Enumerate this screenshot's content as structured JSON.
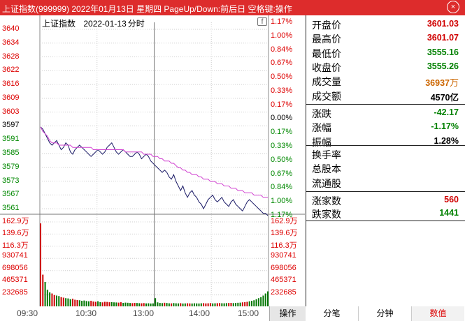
{
  "window": {
    "title": "上证指数(999999) 2022年01月13日 星期四 PageUp/Down:前后日 空格键:操作",
    "close_label": "×"
  },
  "chart": {
    "caption_name": "上证指数",
    "caption_date": "2022-01-13",
    "caption_suffix": "分时",
    "mini_icon": "f",
    "price_ticks_left": [
      "3640",
      "3634",
      "3628",
      "3622",
      "3616",
      "3609",
      "3603",
      "3597",
      "3591",
      "3585",
      "3579",
      "3573",
      "3567",
      "3561"
    ],
    "pct_ticks_right": [
      "1.17%",
      "1.00%",
      "0.84%",
      "0.67%",
      "0.50%",
      "0.33%",
      "0.17%",
      "0.00%",
      "0.17%",
      "0.33%",
      "0.50%",
      "0.67%",
      "0.84%",
      "1.00%",
      "1.17%"
    ],
    "volume_ticks_left": [
      "162.9万",
      "139.6万",
      "116.3万",
      "930741",
      "698056",
      "465371",
      "232685"
    ],
    "volume_ticks_right": [
      "162.9万",
      "139.6万",
      "116.3万",
      "930741",
      "698056",
      "465371",
      "232685"
    ],
    "time_labels": [
      "09:30",
      "10:30",
      "13:00",
      "14:00",
      "15:00"
    ],
    "colors": {
      "price_line": "#1a1a66",
      "avg_line": "#d040d0",
      "up_bar": "#cc0000",
      "down_bar": "#007700",
      "grid": "#cfcfcf",
      "axis_up": "#dd0000",
      "axis_down": "#008800"
    },
    "chart_data": {
      "type": "line",
      "series": [
        {
          "values": [
            3597,
            3596,
            3594,
            3592,
            3590,
            3589,
            3590,
            3591,
            3589,
            3587,
            3588,
            3590,
            3589,
            3586,
            3585,
            3587,
            3588,
            3589,
            3588,
            3587,
            3586,
            3585,
            3584,
            3585,
            3586,
            3587,
            3586,
            3585,
            3586,
            3588,
            3589,
            3590,
            3588,
            3586,
            3585,
            3586,
            3587,
            3586,
            3585,
            3584,
            3584,
            3585,
            3586,
            3585,
            3583,
            3584,
            3585,
            3584,
            3582,
            3581,
            3580,
            3579,
            3578,
            3577,
            3578,
            3577,
            3575,
            3574,
            3576,
            3573,
            3571,
            3569,
            3571,
            3568,
            3566,
            3568,
            3569,
            3567,
            3566,
            3564,
            3563,
            3561,
            3563,
            3565,
            3566,
            3567,
            3565,
            3564,
            3565,
            3566,
            3564,
            3563,
            3562,
            3564,
            3565,
            3563,
            3562,
            3561,
            3560,
            3562,
            3564,
            3565,
            3564,
            3563,
            3562,
            3561,
            3560,
            3559,
            3559,
            3558
          ]
        },
        {
          "values": [
            3597,
            3595,
            3594,
            3593,
            3591,
            3590,
            3590,
            3590,
            3589,
            3589,
            3589,
            3589,
            3589,
            3589,
            3588,
            3588,
            3588,
            3588,
            3588,
            3588,
            3588,
            3588,
            3588,
            3587,
            3587,
            3587,
            3587,
            3587,
            3587,
            3587,
            3587,
            3587,
            3587,
            3587,
            3587,
            3587,
            3587,
            3586,
            3586,
            3586,
            3586,
            3586,
            3586,
            3586,
            3586,
            3585,
            3585,
            3585,
            3585,
            3584,
            3584,
            3584,
            3583,
            3583,
            3582,
            3582,
            3582,
            3581,
            3581,
            3580,
            3579,
            3579,
            3578,
            3578,
            3577,
            3577,
            3576,
            3576,
            3576,
            3575,
            3575,
            3574,
            3574,
            3574,
            3573,
            3573,
            3573,
            3572,
            3572,
            3572,
            3571,
            3571,
            3571,
            3570,
            3570,
            3570,
            3569,
            3569,
            3569,
            3568,
            3568,
            3568,
            3568,
            3567,
            3567,
            3567,
            3567,
            3566,
            3566,
            3566
          ]
        }
      ],
      "ylim": [
        3555.26,
        3640
      ],
      "volume_values": [
        1600000,
        620000,
        480000,
        330000,
        280000,
        260000,
        230000,
        220000,
        210000,
        190000,
        180000,
        170000,
        165000,
        150000,
        160000,
        140000,
        135000,
        130000,
        120000,
        125000,
        115000,
        110000,
        120000,
        105000,
        100000,
        110000,
        95000,
        90000,
        100000,
        98000,
        92000,
        95000,
        90000,
        88000,
        85000,
        92000,
        80000,
        85000,
        82000,
        78000,
        75000,
        80000,
        78000,
        74000,
        72000,
        76000,
        70000,
        72000,
        68000,
        70000,
        170000,
        90000,
        80000,
        75000,
        82000,
        78000,
        72000,
        70000,
        76000,
        72000,
        70000,
        74000,
        68000,
        70000,
        72000,
        70000,
        68000,
        72000,
        70000,
        68000,
        72000,
        74000,
        70000,
        72000,
        75000,
        70000,
        72000,
        74000,
        76000,
        73000,
        72000,
        75000,
        78000,
        80000,
        76000,
        79000,
        82000,
        85000,
        90000,
        95000,
        100000,
        110000,
        120000,
        130000,
        150000,
        170000,
        190000,
        220000,
        260000,
        300000
      ],
      "volume_up": [
        true,
        true,
        false,
        false,
        false,
        true,
        true,
        false,
        false,
        true,
        true,
        false,
        false,
        false,
        true,
        true,
        true,
        false,
        false,
        false,
        false,
        false,
        true,
        true,
        true,
        false,
        false,
        true,
        true,
        true,
        true,
        false,
        false,
        false,
        true,
        true,
        false,
        false,
        false,
        false,
        true,
        true,
        false,
        false,
        true,
        true,
        false,
        false,
        false,
        false,
        false,
        false,
        false,
        false,
        true,
        false,
        false,
        true,
        false,
        false,
        false,
        true,
        false,
        false,
        true,
        true,
        false,
        false,
        false,
        false,
        false,
        true,
        true,
        true,
        true,
        false,
        false,
        true,
        true,
        false,
        false,
        false,
        true,
        true,
        false,
        false,
        false,
        false,
        true,
        true,
        true,
        false,
        false,
        false,
        false,
        false,
        false,
        false,
        false,
        false
      ]
    }
  },
  "panel": {
    "rows_top": [
      {
        "label": "开盘价",
        "value": "3601.03",
        "color": "#d00000"
      },
      {
        "label": "最高价",
        "value": "3601.07",
        "color": "#d00000"
      },
      {
        "label": "最低价",
        "value": "3555.16",
        "color": "#008000"
      },
      {
        "label": "收盘价",
        "value": "3555.26",
        "color": "#008000"
      },
      {
        "label": "成交量",
        "value": "36937",
        "unit": "万",
        "color": "#cc6600"
      },
      {
        "label": "成交额",
        "value": "4570亿",
        "color": "#000000"
      }
    ],
    "rows_mid": [
      {
        "label": "涨跌",
        "value": "-42.17",
        "color": "#008000"
      },
      {
        "label": "涨幅",
        "value": "-1.17%",
        "color": "#008000"
      },
      {
        "label": "振幅",
        "value": "1.28%",
        "color": "#000000"
      }
    ],
    "rows_info": [
      {
        "label": "换手率"
      },
      {
        "label": "总股本"
      },
      {
        "label": "流通股"
      }
    ],
    "rows_bottom": [
      {
        "label": "涨家数",
        "value": "560",
        "color": "#d00000"
      },
      {
        "label": "跌家数",
        "value": "1441",
        "color": "#008000"
      }
    ]
  },
  "footer": {
    "ops_label": "操作",
    "tabs": [
      "分笔",
      "分钟",
      "数值"
    ]
  }
}
